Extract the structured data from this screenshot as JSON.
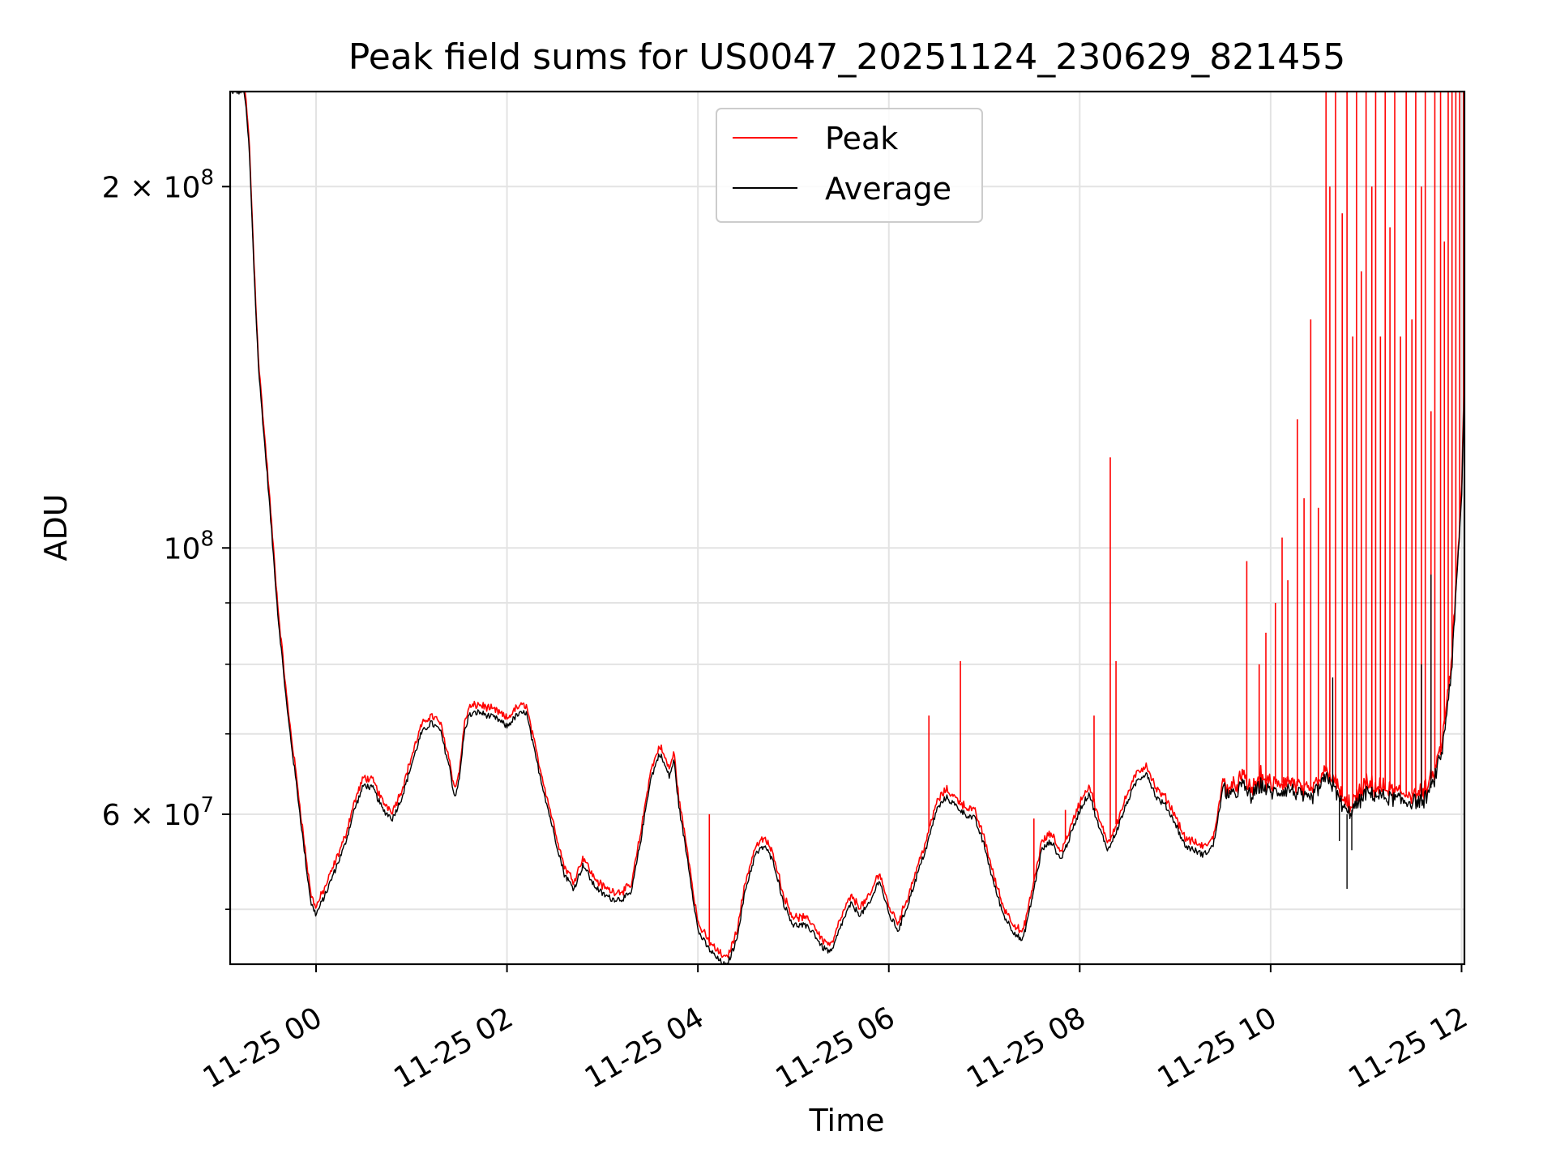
{
  "chart_data": {
    "type": "line",
    "title": "Peak field sums for US0047_20251124_230629_821455",
    "xlabel": "Time",
    "ylabel": "ADU",
    "y_scale": "log",
    "ylim": [
      45000000,
      240000000
    ],
    "xlim_hours": [
      -0.9,
      12.03
    ],
    "grid": true,
    "legend_position": "upper center",
    "x_ticks": [
      {
        "hour": 0,
        "label": "11-25 00"
      },
      {
        "hour": 2,
        "label": "11-25 02"
      },
      {
        "hour": 4,
        "label": "11-25 04"
      },
      {
        "hour": 6,
        "label": "11-25 06"
      },
      {
        "hour": 8,
        "label": "11-25 08"
      },
      {
        "hour": 10,
        "label": "11-25 10"
      },
      {
        "hour": 12,
        "label": "11-25 12"
      }
    ],
    "y_major_ticks": [
      {
        "value": 60000000,
        "mantissa": "6",
        "exponent": "7"
      },
      {
        "value": 100000000,
        "mantissa": "",
        "exponent": "8"
      },
      {
        "value": 200000000,
        "mantissa": "2",
        "exponent": "8"
      }
    ],
    "y_minor_ticks": [
      50000000,
      70000000,
      80000000,
      90000000
    ],
    "series": [
      {
        "name": "Peak",
        "color": "#ff0000"
      },
      {
        "name": "Average",
        "color": "#000000"
      }
    ],
    "average_profile": [
      [
        -0.9,
        240000000
      ],
      [
        -0.75,
        240000000
      ],
      [
        -0.7,
        215000000
      ],
      [
        -0.65,
        170000000
      ],
      [
        -0.6,
        140000000
      ],
      [
        -0.5,
        112000000
      ],
      [
        -0.4,
        88000000
      ],
      [
        -0.3,
        73000000
      ],
      [
        -0.2,
        63000000
      ],
      [
        -0.1,
        54000000
      ],
      [
        -0.05,
        50500000
      ],
      [
        0.0,
        49500000
      ],
      [
        0.1,
        51500000
      ],
      [
        0.3,
        56500000
      ],
      [
        0.4,
        60500000
      ],
      [
        0.5,
        63500000
      ],
      [
        0.6,
        63000000
      ],
      [
        0.7,
        60500000
      ],
      [
        0.8,
        59500000
      ],
      [
        0.9,
        62000000
      ],
      [
        1.0,
        66000000
      ],
      [
        1.1,
        70000000
      ],
      [
        1.2,
        71500000
      ],
      [
        1.3,
        70500000
      ],
      [
        1.4,
        65500000
      ],
      [
        1.45,
        62000000
      ],
      [
        1.5,
        64000000
      ],
      [
        1.55,
        70000000
      ],
      [
        1.6,
        72500000
      ],
      [
        1.7,
        73000000
      ],
      [
        1.8,
        72500000
      ],
      [
        1.9,
        72000000
      ],
      [
        2.0,
        71000000
      ],
      [
        2.1,
        72500000
      ],
      [
        2.2,
        73000000
      ],
      [
        2.3,
        67000000
      ],
      [
        2.4,
        62000000
      ],
      [
        2.5,
        57500000
      ],
      [
        2.6,
        53500000
      ],
      [
        2.7,
        52000000
      ],
      [
        2.8,
        54500000
      ],
      [
        2.9,
        52500000
      ],
      [
        3.0,
        51500000
      ],
      [
        3.1,
        51000000
      ],
      [
        3.2,
        51000000
      ],
      [
        3.3,
        51500000
      ],
      [
        3.4,
        57000000
      ],
      [
        3.5,
        64000000
      ],
      [
        3.6,
        67500000
      ],
      [
        3.7,
        64500000
      ],
      [
        3.75,
        66500000
      ],
      [
        3.8,
        61000000
      ],
      [
        3.9,
        54500000
      ],
      [
        4.0,
        48000000
      ],
      [
        4.1,
        46500000
      ],
      [
        4.2,
        45500000
      ],
      [
        4.3,
        44800000
      ],
      [
        4.4,
        47000000
      ],
      [
        4.5,
        52000000
      ],
      [
        4.6,
        55500000
      ],
      [
        4.7,
        56500000
      ],
      [
        4.8,
        54500000
      ],
      [
        4.9,
        50500000
      ],
      [
        5.0,
        48500000
      ],
      [
        5.1,
        48500000
      ],
      [
        5.2,
        48000000
      ],
      [
        5.3,
        46500000
      ],
      [
        5.4,
        46000000
      ],
      [
        5.5,
        48500000
      ],
      [
        5.6,
        50500000
      ],
      [
        5.7,
        49500000
      ],
      [
        5.8,
        50500000
      ],
      [
        5.9,
        53000000
      ],
      [
        6.0,
        49500000
      ],
      [
        6.1,
        48000000
      ],
      [
        6.2,
        50500000
      ],
      [
        6.3,
        53500000
      ],
      [
        6.4,
        56500000
      ],
      [
        6.5,
        60500000
      ],
      [
        6.6,
        62000000
      ],
      [
        6.7,
        61000000
      ],
      [
        6.8,
        60000000
      ],
      [
        6.9,
        59500000
      ],
      [
        7.0,
        56500000
      ],
      [
        7.1,
        52500000
      ],
      [
        7.2,
        49500000
      ],
      [
        7.3,
        48000000
      ],
      [
        7.4,
        47000000
      ],
      [
        7.5,
        51000000
      ],
      [
        7.6,
        56000000
      ],
      [
        7.7,
        57000000
      ],
      [
        7.8,
        55000000
      ],
      [
        7.9,
        57500000
      ],
      [
        8.0,
        60500000
      ],
      [
        8.1,
        62500000
      ],
      [
        8.2,
        58500000
      ],
      [
        8.3,
        56000000
      ],
      [
        8.4,
        58500000
      ],
      [
        8.5,
        61500000
      ],
      [
        8.6,
        64000000
      ],
      [
        8.7,
        65000000
      ],
      [
        8.8,
        62000000
      ],
      [
        8.9,
        61000000
      ],
      [
        9.0,
        59000000
      ],
      [
        9.1,
        56500000
      ],
      [
        9.2,
        56000000
      ],
      [
        9.3,
        55500000
      ],
      [
        9.4,
        56500000
      ],
      [
        9.5,
        63000000
      ],
      [
        9.6,
        62000000
      ],
      [
        9.7,
        63500000
      ],
      [
        9.8,
        62000000
      ],
      [
        9.9,
        63500000
      ],
      [
        10.0,
        62500000
      ],
      [
        10.2,
        63000000
      ],
      [
        10.4,
        61500000
      ],
      [
        10.6,
        64500000
      ],
      [
        10.8,
        60000000
      ],
      [
        10.9,
        61000000
      ],
      [
        11.0,
        62500000
      ],
      [
        11.2,
        62000000
      ],
      [
        11.4,
        61500000
      ],
      [
        11.6,
        61500000
      ],
      [
        11.7,
        63500000
      ],
      [
        11.8,
        68000000
      ],
      [
        11.9,
        80000000
      ],
      [
        12.0,
        110000000
      ],
      [
        12.03,
        136000000
      ]
    ],
    "peak_offset_factor": 1.015,
    "peak_spikes": [
      [
        4.12,
        60000000
      ],
      [
        6.42,
        72500000
      ],
      [
        6.75,
        80500000
      ],
      [
        7.52,
        59500000
      ],
      [
        7.85,
        60500000
      ],
      [
        8.15,
        72500000
      ],
      [
        8.32,
        119000000
      ],
      [
        8.38,
        80500000
      ],
      [
        9.75,
        97500000
      ],
      [
        9.88,
        80000000
      ],
      [
        9.95,
        85000000
      ],
      [
        10.05,
        90000000
      ],
      [
        10.12,
        102000000
      ],
      [
        10.18,
        94000000
      ],
      [
        10.28,
        128000000
      ],
      [
        10.35,
        110000000
      ],
      [
        10.42,
        155000000
      ],
      [
        10.5,
        108000000
      ],
      [
        10.58,
        240000000
      ],
      [
        10.62,
        200000000
      ],
      [
        10.68,
        240000000
      ],
      [
        10.75,
        190000000
      ],
      [
        10.8,
        240000000
      ],
      [
        10.86,
        150000000
      ],
      [
        10.9,
        240000000
      ],
      [
        10.95,
        170000000
      ],
      [
        11.0,
        240000000
      ],
      [
        11.06,
        200000000
      ],
      [
        11.1,
        240000000
      ],
      [
        11.15,
        150000000
      ],
      [
        11.2,
        240000000
      ],
      [
        11.25,
        185000000
      ],
      [
        11.3,
        240000000
      ],
      [
        11.36,
        150000000
      ],
      [
        11.42,
        240000000
      ],
      [
        11.48,
        155000000
      ],
      [
        11.52,
        240000000
      ],
      [
        11.58,
        200000000
      ],
      [
        11.62,
        240000000
      ],
      [
        11.68,
        130000000
      ],
      [
        11.72,
        240000000
      ],
      [
        11.78,
        240000000
      ],
      [
        11.82,
        180000000
      ],
      [
        11.86,
        240000000
      ],
      [
        11.9,
        240000000
      ],
      [
        11.94,
        240000000
      ],
      [
        11.98,
        240000000
      ],
      [
        12.02,
        240000000
      ]
    ],
    "average_spikes": [
      [
        10.65,
        78000000
      ],
      [
        10.72,
        57000000
      ],
      [
        10.8,
        52000000
      ],
      [
        10.85,
        56000000
      ],
      [
        11.58,
        80000000
      ],
      [
        11.68,
        95000000
      ]
    ]
  }
}
